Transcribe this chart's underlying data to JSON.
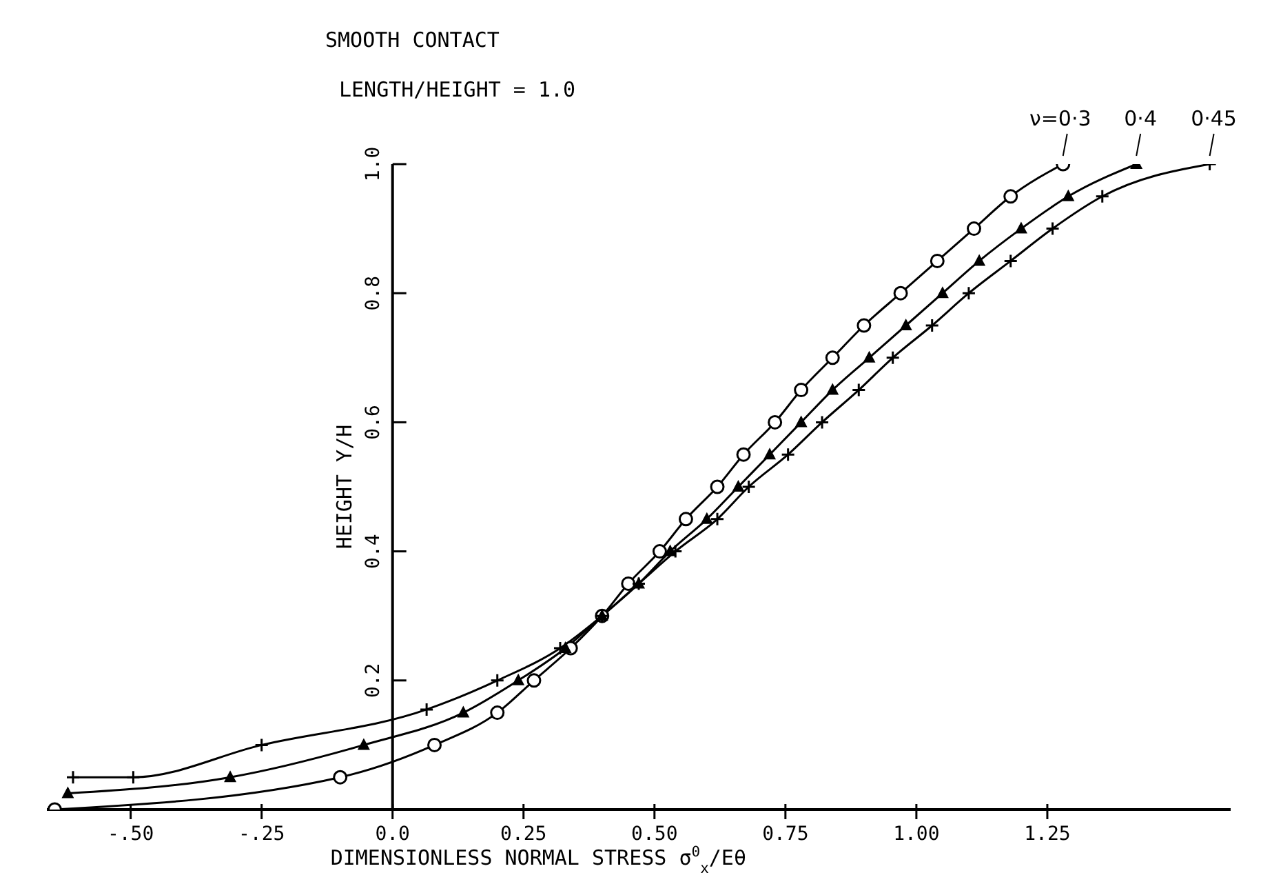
{
  "chart_data": {
    "type": "line",
    "title": "SMOOTH CONTACT",
    "subtitle": "LENGTH/HEIGHT = 1.0",
    "xlabel": "DIMENSIONLESS NORMAL STRESS      σ$^{0}$$_{x}$/Eθ",
    "ylabel": "HEIGHT  Y/H",
    "xlim": [
      -0.66,
      1.6
    ],
    "ylim": [
      0,
      1
    ],
    "xticks": [
      {
        "value": -0.5,
        "label": "-.50"
      },
      {
        "value": -0.25,
        "label": "-.25"
      },
      {
        "value": 0,
        "label": "0.0"
      },
      0.25,
      {
        "value": 0.5,
        "label": "0.50"
      },
      0.75,
      {
        "value": 1,
        "label": "1.00"
      },
      1.25
    ],
    "yticks": [
      0.2,
      0.4,
      0.6,
      0.8,
      {
        "value": 1,
        "label": "1.0"
      }
    ],
    "grid": false,
    "legend": false,
    "series": [
      {
        "name": "ν=0·3",
        "color": "#000000",
        "marker": "circle",
        "x": [
          -0.645,
          -0.1,
          0.08,
          0.2,
          0.27,
          0.34,
          0.4,
          0.45,
          0.51,
          0.56,
          0.62,
          0.67,
          0.73,
          0.78,
          0.84,
          0.9,
          0.97,
          1.04,
          1.11,
          1.18,
          1.28
        ],
        "values": [
          0,
          0.05,
          0.1,
          0.15,
          0.2,
          0.25,
          0.3,
          0.35,
          0.4,
          0.45,
          0.5,
          0.55,
          0.6,
          0.65,
          0.7,
          0.75,
          0.8,
          0.85,
          0.9,
          0.95,
          1.0
        ]
      },
      {
        "name": "0·4",
        "color": "#000000",
        "marker": "triangle",
        "x": [
          -0.62,
          -0.31,
          -0.055,
          0.135,
          0.24,
          0.33,
          0.4,
          0.47,
          0.53,
          0.6,
          0.66,
          0.72,
          0.78,
          0.84,
          0.91,
          0.98,
          1.05,
          1.12,
          1.2,
          1.29,
          1.42
        ],
        "values": [
          0.025,
          0.05,
          0.1,
          0.15,
          0.2,
          0.25,
          0.3,
          0.35,
          0.4,
          0.45,
          0.5,
          0.55,
          0.6,
          0.65,
          0.7,
          0.75,
          0.8,
          0.85,
          0.9,
          0.95,
          1.0
        ]
      },
      {
        "name": "0·45",
        "color": "#000000",
        "marker": "cross",
        "x": [
          -0.61,
          -0.495,
          -0.25,
          0.065,
          0.2,
          0.32,
          0.4,
          0.47,
          0.54,
          0.62,
          0.68,
          0.755,
          0.82,
          0.89,
          0.955,
          1.03,
          1.1,
          1.18,
          1.26,
          1.355,
          1.56
        ],
        "values": [
          0.05,
          0.05,
          0.1,
          0.155,
          0.2,
          0.25,
          0.3,
          0.35,
          0.4,
          0.45,
          0.5,
          0.55,
          0.6,
          0.65,
          0.7,
          0.75,
          0.8,
          0.85,
          0.9,
          0.95,
          1.0
        ]
      }
    ]
  }
}
